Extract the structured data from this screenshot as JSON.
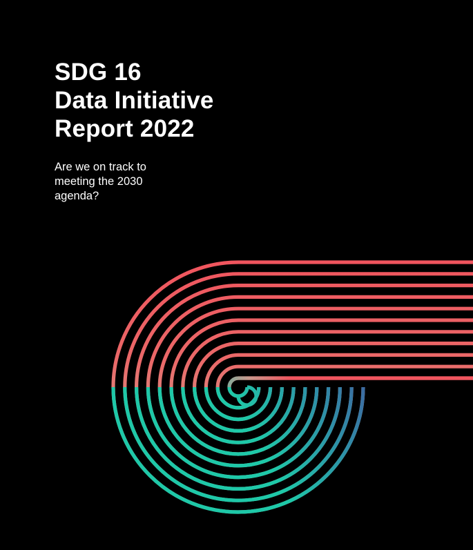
{
  "cover": {
    "title_lines": [
      "SDG 16",
      "Data Initiative",
      "Report 2022"
    ],
    "subtitle_lines": [
      "Are we on track to",
      "meeting the 2030",
      "agenda?"
    ]
  },
  "graphic": {
    "name": "concentric-stripes-swirl",
    "ring_count": 11,
    "colors": {
      "background": "#000000",
      "coral": "#f0555e",
      "peach": "#e0a090",
      "teal": "#1ec8a8",
      "blue": "#3f5fa0"
    }
  }
}
